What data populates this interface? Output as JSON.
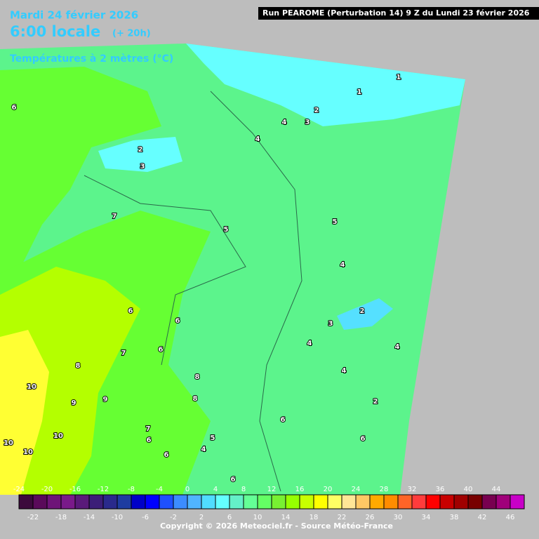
{
  "header": {
    "date": "Mardi 24 février 2026",
    "time": "6:00 locale",
    "offset": "(+ 20h)",
    "variable": "Températures à 2 mètres (°C)",
    "run": "Run PEAROME (Perturbation 14) 9 Z du Lundi 23 février 2026"
  },
  "contour_labels": [
    6,
    2,
    3,
    4,
    3,
    2,
    1,
    1,
    4,
    7,
    5,
    5,
    4,
    6,
    6,
    2,
    3,
    4,
    6,
    7,
    4,
    8,
    4,
    8,
    10,
    9,
    9,
    8,
    2,
    6,
    7,
    10,
    10,
    6,
    6,
    10,
    4,
    5,
    6,
    6
  ],
  "legend": {
    "colors": [
      "#3c0a3c",
      "#5a0a5a",
      "#6e1478",
      "#7a1a8a",
      "#5a1a7a",
      "#3c1e78",
      "#2a2a8c",
      "#1e3ca0",
      "#0000c8",
      "#0000ff",
      "#1e50ff",
      "#3c8cff",
      "#50b4ff",
      "#50dcff",
      "#64ffff",
      "#64f0c8",
      "#64ff96",
      "#64ff64",
      "#78f032",
      "#96ff00",
      "#c8ff00",
      "#ffff00",
      "#ffff64",
      "#ffe696",
      "#ffc864",
      "#ffaa00",
      "#ff8c00",
      "#ff6428",
      "#ff3c3c",
      "#ff0000",
      "#c80000",
      "#a00000",
      "#780000",
      "#780050",
      "#a0007a",
      "#c800c8"
    ],
    "ticks_top": [
      -24,
      -20,
      -16,
      -12,
      -8,
      -4,
      0,
      4,
      8,
      12,
      16,
      20,
      24,
      28,
      32,
      36,
      40,
      44
    ],
    "ticks_bottom": [
      -22,
      -18,
      -14,
      -10,
      -6,
      -2,
      2,
      6,
      10,
      14,
      18,
      22,
      26,
      30,
      34,
      38,
      42,
      46
    ]
  },
  "footer": {
    "copyright": "Copyright © 2026 Meteociel.fr - Source Météo-France"
  }
}
